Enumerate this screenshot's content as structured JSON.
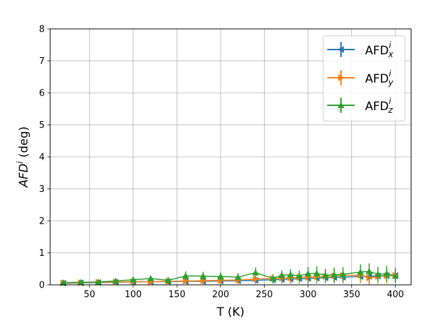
{
  "chart_data": {
    "type": "line",
    "xlabel": "T (K)",
    "ylabel_main": "AFD",
    "ylabel_sup": "i",
    "ylabel_unit": " (deg)",
    "xlim": [
      5,
      418
    ],
    "ylim": [
      0,
      8
    ],
    "xticks": [
      50,
      100,
      150,
      200,
      250,
      300,
      350,
      400
    ],
    "yticks": [
      0,
      1,
      2,
      3,
      4,
      5,
      6,
      7,
      8
    ],
    "grid": true,
    "legend_position": "upper-right",
    "series": [
      {
        "name": "AFD",
        "name_sup": "i",
        "name_sub": "x",
        "color": "#1f77b4",
        "marker": "triangle-left",
        "x": [
          20,
          40,
          60,
          80,
          100,
          120,
          140,
          160,
          180,
          200,
          220,
          240,
          260,
          270,
          280,
          290,
          300,
          310,
          320,
          330,
          340,
          360,
          370,
          380,
          390,
          400
        ],
        "y": [
          0.05,
          0.06,
          0.07,
          0.08,
          0.09,
          0.1,
          0.1,
          0.11,
          0.11,
          0.12,
          0.13,
          0.14,
          0.16,
          0.17,
          0.18,
          0.19,
          0.2,
          0.21,
          0.22,
          0.23,
          0.24,
          0.26,
          0.27,
          0.28,
          0.29,
          0.29
        ],
        "yerr": [
          0.05,
          0.05,
          0.05,
          0.06,
          0.07,
          0.07,
          0.08,
          0.08,
          0.09,
          0.09,
          0.1,
          0.11,
          0.12,
          0.13,
          0.14,
          0.15,
          0.16,
          0.17,
          0.17,
          0.18,
          0.19,
          0.2,
          0.21,
          0.21,
          0.22,
          0.22
        ]
      },
      {
        "name": "AFD",
        "name_sup": "i",
        "name_sub": "y",
        "color": "#ff7f0e",
        "marker": "triangle-right",
        "x": [
          20,
          40,
          60,
          80,
          100,
          120,
          140,
          160,
          180,
          200,
          220,
          240,
          260,
          270,
          280,
          290,
          300,
          310,
          320,
          330,
          340,
          360,
          370,
          380,
          390,
          400
        ],
        "y": [
          0.06,
          0.07,
          0.08,
          0.09,
          0.1,
          0.1,
          0.11,
          0.12,
          0.13,
          0.14,
          0.15,
          0.18,
          0.2,
          0.21,
          0.22,
          0.23,
          0.24,
          0.25,
          0.26,
          0.28,
          0.29,
          0.3,
          0.22,
          0.26,
          0.28,
          0.3
        ],
        "yerr": [
          0.06,
          0.06,
          0.06,
          0.07,
          0.07,
          0.08,
          0.09,
          0.09,
          0.1,
          0.11,
          0.12,
          0.13,
          0.14,
          0.15,
          0.16,
          0.17,
          0.17,
          0.18,
          0.19,
          0.2,
          0.21,
          0.22,
          0.22,
          0.23,
          0.23,
          0.24
        ]
      },
      {
        "name": "AFD",
        "name_sup": "i",
        "name_sub": "z",
        "color": "#2ca02c",
        "marker": "triangle-up",
        "x": [
          20,
          40,
          60,
          80,
          100,
          120,
          140,
          160,
          180,
          200,
          220,
          240,
          260,
          270,
          280,
          290,
          300,
          310,
          320,
          330,
          340,
          360,
          370,
          380,
          390,
          400
        ],
        "y": [
          0.07,
          0.08,
          0.09,
          0.12,
          0.16,
          0.2,
          0.14,
          0.28,
          0.27,
          0.26,
          0.24,
          0.38,
          0.2,
          0.3,
          0.32,
          0.28,
          0.35,
          0.36,
          0.3,
          0.32,
          0.33,
          0.4,
          0.42,
          0.33,
          0.35,
          0.28
        ],
        "yerr": [
          0.06,
          0.07,
          0.08,
          0.08,
          0.09,
          0.1,
          0.1,
          0.14,
          0.14,
          0.13,
          0.13,
          0.16,
          0.13,
          0.15,
          0.17,
          0.17,
          0.21,
          0.22,
          0.2,
          0.22,
          0.22,
          0.24,
          0.25,
          0.23,
          0.24,
          0.22
        ]
      }
    ]
  }
}
